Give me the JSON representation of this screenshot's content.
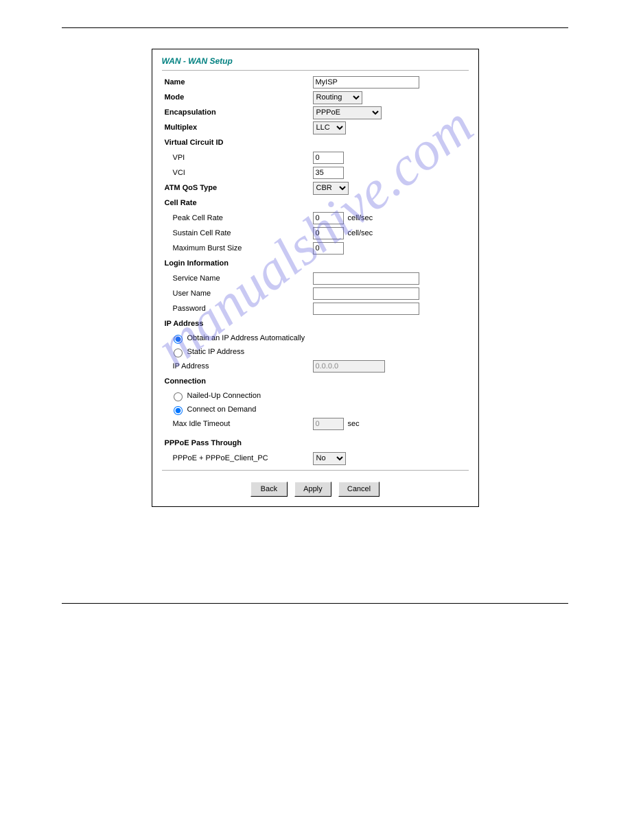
{
  "watermark": "manualshive.com",
  "panel": {
    "title": "WAN - WAN Setup",
    "name": {
      "label": "Name",
      "value": "MyISP"
    },
    "mode": {
      "label": "Mode",
      "value": "Routing"
    },
    "encapsulation": {
      "label": "Encapsulation",
      "value": "PPPoE"
    },
    "multiplex": {
      "label": "Multiplex",
      "value": "LLC"
    },
    "vcid": {
      "label": "Virtual Circuit ID",
      "vpi": {
        "label": "VPI",
        "value": "0"
      },
      "vci": {
        "label": "VCI",
        "value": "35"
      }
    },
    "atm": {
      "label": "ATM QoS Type",
      "value": "CBR"
    },
    "cellrate": {
      "label": "Cell Rate",
      "peak": {
        "label": "Peak Cell Rate",
        "value": "0",
        "unit": "cell/sec"
      },
      "sustain": {
        "label": "Sustain Cell Rate",
        "value": "0",
        "unit": "cell/sec"
      },
      "burst": {
        "label": "Maximum Burst Size",
        "value": "0"
      }
    },
    "login": {
      "label": "Login Information",
      "service": {
        "label": "Service Name",
        "value": ""
      },
      "user": {
        "label": "User Name",
        "value": ""
      },
      "password": {
        "label": "Password",
        "value": ""
      }
    },
    "ip": {
      "label": "IP Address",
      "auto": {
        "label": "Obtain an IP Address Automatically",
        "checked": true
      },
      "static": {
        "label": "Static IP Address",
        "checked": false
      },
      "addr": {
        "label": "IP Address",
        "value": "0.0.0.0"
      }
    },
    "conn": {
      "label": "Connection",
      "nailed": {
        "label": "Nailed-Up Connection",
        "checked": false
      },
      "demand": {
        "label": "Connect on Demand",
        "checked": true
      },
      "idle": {
        "label": "Max Idle Timeout",
        "value": "0",
        "unit": "sec"
      }
    },
    "pppoe": {
      "label": "PPPoE Pass Through",
      "sub": "PPPoE + PPPoE_Client_PC",
      "value": "No"
    },
    "buttons": {
      "back": "Back",
      "apply": "Apply",
      "cancel": "Cancel"
    }
  }
}
